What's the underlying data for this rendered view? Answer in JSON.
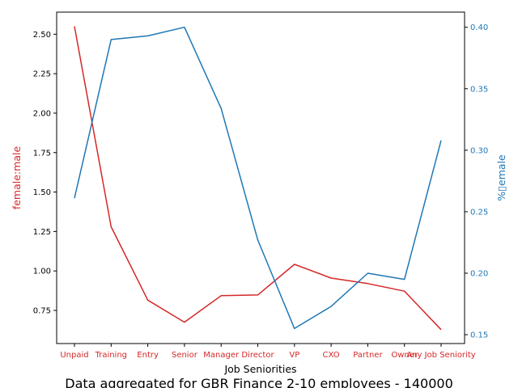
{
  "chart_data": {
    "type": "line",
    "title": "Data aggregated for GBR Finance 2-10 employees - 140000",
    "xlabel": "Job Seniorities",
    "categories": [
      "Unpaid",
      "Training",
      "Entry",
      "Senior",
      "Manager",
      "Director",
      "VP",
      "CXO",
      "Partner",
      "Owner",
      "Any Job Seniority"
    ],
    "series": [
      {
        "name": "female:male",
        "axis": "left",
        "color": "#d62728",
        "values": [
          2.55,
          1.28,
          0.815,
          0.675,
          0.843,
          0.848,
          1.042,
          0.955,
          0.92,
          0.872,
          0.628
        ]
      },
      {
        "name": "%female",
        "axis": "right",
        "color": "#1f77b4",
        "values": [
          0.261,
          0.39,
          0.393,
          0.4,
          0.334,
          0.227,
          0.155,
          0.173,
          0.2,
          0.195,
          0.308
        ]
      }
    ],
    "y_left": {
      "label": "female:male",
      "color": "#d62728",
      "ylim": [
        0.54,
        2.64
      ],
      "ticks": [
        "0.75",
        "1.00",
        "1.25",
        "1.50",
        "1.75",
        "2.00",
        "2.25",
        "2.50"
      ]
    },
    "y_right": {
      "label": "%▯emale",
      "color": "#1f77b4",
      "ylim": [
        0.1428,
        0.4123
      ],
      "ticks": [
        "0.15",
        "0.20",
        "0.25",
        "0.30",
        "0.35",
        "0.40"
      ]
    },
    "grid": false
  }
}
